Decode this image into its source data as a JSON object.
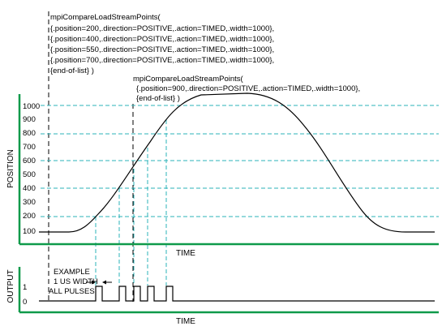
{
  "call1": {
    "lines": [
      "mpiCompareLoadStreamPoints(",
      "{.position=200,.direction=POSITIVE,.action=TIMED,.width=1000},",
      "{.position=400,.direction=POSITIVE,.action=TIMED,.width=1000},",
      "{.position=550,.direction=POSITIVE,.action=TIMED,.width=1000},",
      "{.position=700,.direction=POSITIVE,.action=TIMED,.width=1000},",
      "{end-of-list} )"
    ]
  },
  "call2": {
    "lines": [
      "mpiCompareLoadStreamPoints(",
      "{.position=900,.direction=POSITIVE,.action=TIMED,.width=1000},",
      "{end-of-list} )"
    ]
  },
  "position_plot": {
    "y_axis_label": "POSITION",
    "x_axis_label": "TIME",
    "tick_labels": [
      "1000",
      "900",
      "800",
      "700",
      "600",
      "500",
      "400",
      "300",
      "200",
      "100"
    ]
  },
  "output_plot": {
    "y_axis_label": "OUTPUT",
    "x_axis_label": "TIME",
    "tick_labels": [
      "1",
      "0"
    ]
  },
  "annotation": {
    "lines": [
      "EXAMPLE",
      "1 US WIDTH",
      "ALL PULSES"
    ]
  },
  "colors": {
    "axis": "#0f9a4a",
    "guide": "#2bb3b8",
    "curve": "#000000"
  }
}
